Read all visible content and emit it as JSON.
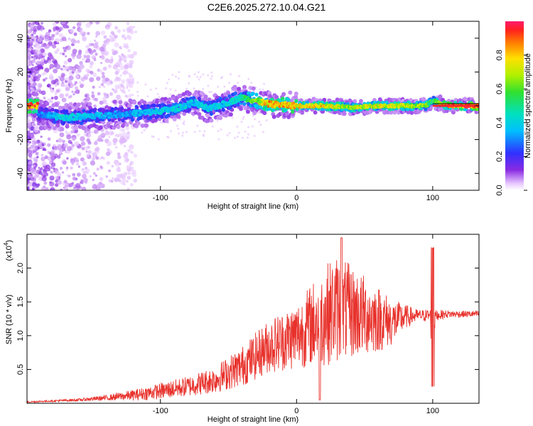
{
  "title": "C2E6.2025.272.10.04.G21",
  "chart_data": [
    {
      "type": "heatmap",
      "title": "C2E6.2025.272.10.04.G21",
      "xlabel": "Height of straight line (km)",
      "ylabel": "Frequency (Hz)",
      "xlim": [
        -198,
        134
      ],
      "ylim": [
        -50,
        50
      ],
      "xticks": [
        "-100",
        "0",
        "100"
      ],
      "yticks": [
        "40",
        "20",
        "0",
        "-20",
        "-40"
      ],
      "colorbar": {
        "label": "Normalized spectral amplitude",
        "range": [
          0,
          1
        ],
        "ticks": [
          "0.0",
          "0.2",
          "0.4",
          "0.6",
          "0.8"
        ]
      },
      "ridge": [
        {
          "x": -190,
          "y": -5,
          "a": 0.3
        },
        {
          "x": -170,
          "y": -7,
          "a": 0.45
        },
        {
          "x": -150,
          "y": -6,
          "a": 0.4
        },
        {
          "x": -130,
          "y": -5,
          "a": 0.35
        },
        {
          "x": -110,
          "y": -4,
          "a": 0.4
        },
        {
          "x": -90,
          "y": -2,
          "a": 0.45
        },
        {
          "x": -75,
          "y": 2,
          "a": 0.4
        },
        {
          "x": -65,
          "y": -2,
          "a": 0.45
        },
        {
          "x": -50,
          "y": 2,
          "a": 0.45
        },
        {
          "x": -40,
          "y": 5,
          "a": 0.5
        },
        {
          "x": -30,
          "y": 3,
          "a": 0.7
        },
        {
          "x": -20,
          "y": 1,
          "a": 0.9
        },
        {
          "x": 0,
          "y": 0,
          "a": 0.85
        },
        {
          "x": 20,
          "y": 0,
          "a": 0.85
        },
        {
          "x": 40,
          "y": -1,
          "a": 0.75
        },
        {
          "x": 60,
          "y": 0,
          "a": 0.8
        },
        {
          "x": 80,
          "y": 0,
          "a": 0.75
        },
        {
          "x": 95,
          "y": 0,
          "a": 0.7
        },
        {
          "x": 100,
          "y": 3,
          "a": 0.6
        },
        {
          "x": 110,
          "y": 0,
          "a": 0.95
        },
        {
          "x": 134,
          "y": 0,
          "a": 0.95
        }
      ]
    },
    {
      "type": "line",
      "xlabel": "Height of straight line (km)",
      "ylabel": "SNR (10 * v/v)",
      "yscale_label": "(x10",
      "yscale_exp": "4",
      "xlim": [
        -198,
        134
      ],
      "ylim": [
        0,
        2.5
      ],
      "xticks": [
        "-100",
        "0",
        "100"
      ],
      "yticks": [
        "0.5",
        "1.0",
        "1.5",
        "2.0"
      ],
      "color": "#e8322c",
      "envelope": {
        "x": [
          -198,
          -160,
          -140,
          -120,
          -100,
          -80,
          -60,
          -40,
          -20,
          0,
          10,
          20,
          30,
          40,
          50,
          60,
          70,
          80,
          90,
          98,
          100,
          102,
          110,
          120,
          134
        ],
        "y": [
          0.02,
          0.05,
          0.08,
          0.12,
          0.18,
          0.25,
          0.35,
          0.55,
          0.85,
          1.0,
          1.15,
          1.3,
          1.4,
          1.35,
          1.3,
          1.25,
          1.2,
          1.28,
          1.3,
          1.3,
          1.0,
          1.3,
          1.32,
          1.32,
          1.32
        ],
        "amp": [
          0.01,
          0.02,
          0.04,
          0.08,
          0.12,
          0.15,
          0.2,
          0.3,
          0.4,
          0.5,
          0.6,
          0.75,
          0.8,
          0.7,
          0.6,
          0.5,
          0.35,
          0.18,
          0.08,
          0.1,
          0.6,
          0.08,
          0.06,
          0.05,
          0.05
        ]
      }
    }
  ]
}
